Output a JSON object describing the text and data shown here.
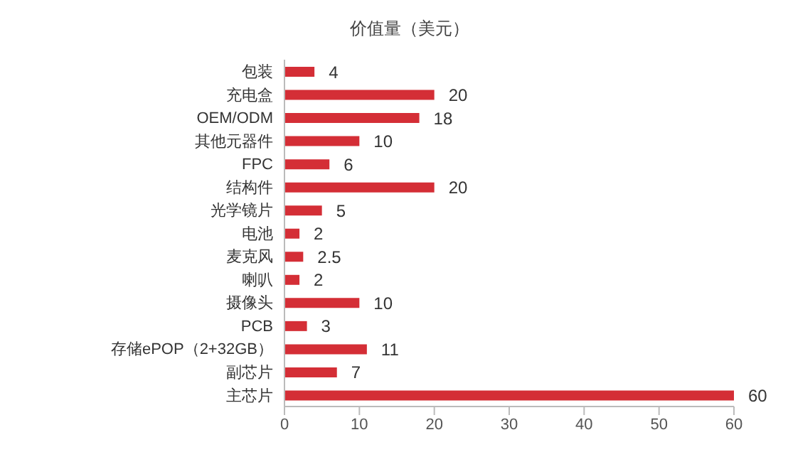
{
  "chart_data": {
    "type": "bar",
    "orientation": "horizontal",
    "title": "价值量（美元）",
    "categories": [
      "包装",
      "充电盒",
      "OEM/ODM",
      "其他元器件",
      "FPC",
      "结构件",
      "光学镜片",
      "电池",
      "麦克风",
      "喇叭",
      "摄像头",
      "PCB",
      "存储ePOP（2+32GB）",
      "副芯片",
      "主芯片"
    ],
    "values": [
      4,
      20,
      18,
      10,
      6,
      20,
      5,
      2,
      2.5,
      2,
      10,
      3,
      11,
      7,
      60
    ],
    "color": "#d42e36",
    "xlim": [
      0,
      60
    ],
    "xticks": [
      0,
      10,
      20,
      30,
      40,
      50,
      60
    ],
    "data_labels": true,
    "grid": false
  }
}
